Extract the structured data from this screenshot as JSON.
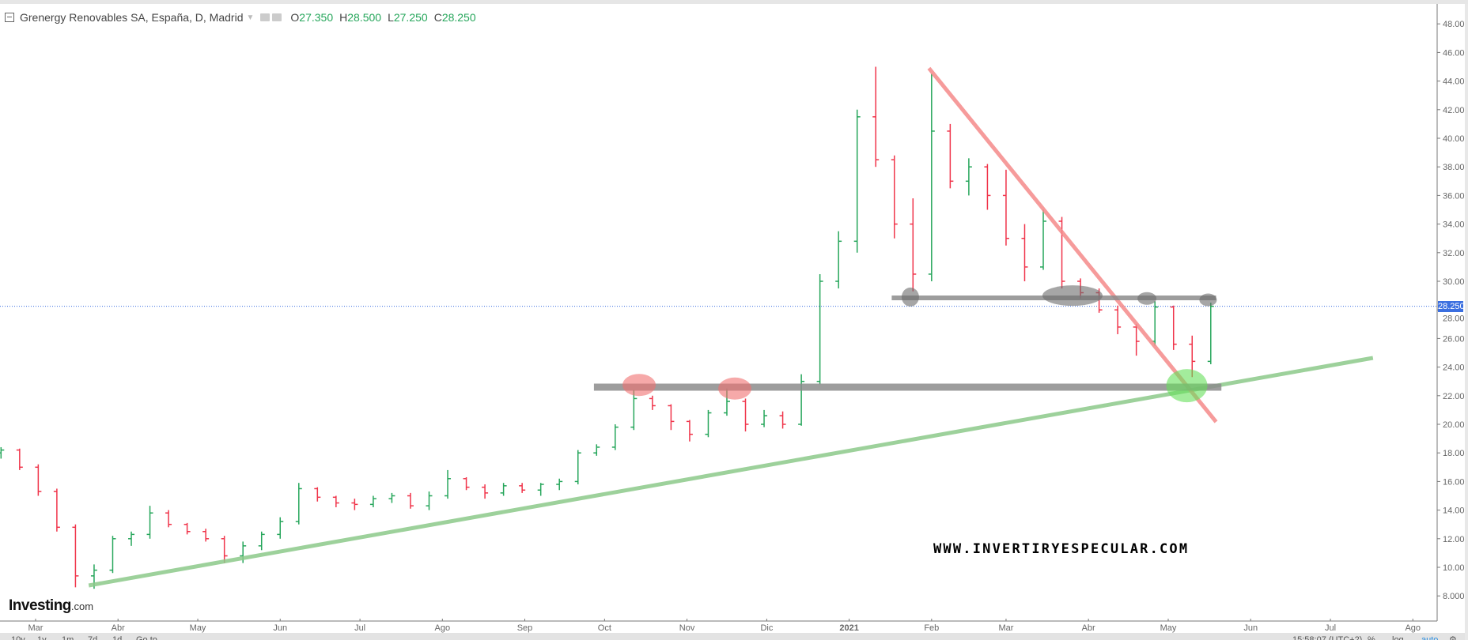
{
  "header": {
    "title": "Grenergy Renovables SA, España, D, Madrid",
    "open_label": "O",
    "open": "27.350",
    "high_label": "H",
    "high": "28.500",
    "low_label": "L",
    "low": "27.250",
    "close_label": "C",
    "close": "28.250"
  },
  "branding": {
    "logo_main": "Investing",
    "logo_suffix": ".com",
    "watermark": "WWW.INVERTIRYESPECULAR.COM"
  },
  "bottom_bar": {
    "ranges": [
      "10y",
      "1y",
      "1m",
      "7d",
      "1d",
      "Go to"
    ],
    "time": "15:58:07 (UTC+2)",
    "percent": "%",
    "log": "log",
    "auto": "auto"
  },
  "colors": {
    "up": "#26a65b",
    "down": "#f0344a",
    "last_price": "#3b6fe0",
    "support_trend": "#8cc98a",
    "resistance_trend": "#f48a8a",
    "levels": "#8c8c8c"
  },
  "chart_data": {
    "type": "ohlc",
    "title": "Grenergy Renovables SA, España, D, Madrid",
    "ylim": [
      6.5,
      49.5
    ],
    "yticks": [
      "8.000",
      "10.000",
      "12.000",
      "14.000",
      "16.000",
      "18.000",
      "20.000",
      "22.000",
      "24.000",
      "26.000",
      "28.000",
      "30.000",
      "32.000",
      "34.000",
      "36.000",
      "38.000",
      "40.000",
      "42.000",
      "44.000",
      "46.000",
      "48.000"
    ],
    "last_price": "28.250",
    "xticks": [
      {
        "date": "2020-03-01",
        "label": "Mar"
      },
      {
        "date": "2020-04-01",
        "label": "Abr"
      },
      {
        "date": "2020-05-01",
        "label": "May"
      },
      {
        "date": "2020-06-01",
        "label": "Jun"
      },
      {
        "date": "2020-07-01",
        "label": "Jul"
      },
      {
        "date": "2020-08-01",
        "label": "Ago"
      },
      {
        "date": "2020-09-01",
        "label": "Sep"
      },
      {
        "date": "2020-10-01",
        "label": "Oct"
      },
      {
        "date": "2020-11-01",
        "label": "Nov"
      },
      {
        "date": "2020-12-01",
        "label": "Dic"
      },
      {
        "date": "2021-01-01",
        "label": "2021"
      },
      {
        "date": "2021-02-01",
        "label": "Feb"
      },
      {
        "date": "2021-03-01",
        "label": "Mar"
      },
      {
        "date": "2021-04-01",
        "label": "Abr"
      },
      {
        "date": "2021-05-01",
        "label": "May"
      },
      {
        "date": "2021-06-01",
        "label": "Jun"
      },
      {
        "date": "2021-07-01",
        "label": "Jul"
      },
      {
        "date": "2021-08-01",
        "label": "Ago"
      }
    ],
    "bars": [
      [
        "2020-02-17",
        18.0,
        18.4,
        17.6,
        18.2
      ],
      [
        "2020-02-24",
        18.2,
        18.3,
        16.8,
        17.0
      ],
      [
        "2020-03-02",
        17.0,
        17.2,
        15.0,
        15.3
      ],
      [
        "2020-03-09",
        15.3,
        15.5,
        12.5,
        12.8
      ],
      [
        "2020-03-16",
        12.8,
        13.0,
        8.6,
        9.4
      ],
      [
        "2020-03-23",
        9.4,
        10.2,
        8.5,
        9.8
      ],
      [
        "2020-03-30",
        9.8,
        12.2,
        9.6,
        12.0
      ],
      [
        "2020-04-06",
        12.0,
        12.5,
        11.5,
        12.3
      ],
      [
        "2020-04-13",
        12.3,
        14.3,
        12.0,
        13.8
      ],
      [
        "2020-04-20",
        13.8,
        14.0,
        12.8,
        13.0
      ],
      [
        "2020-04-27",
        13.0,
        13.1,
        12.3,
        12.5
      ],
      [
        "2020-05-04",
        12.5,
        12.7,
        11.8,
        12.0
      ],
      [
        "2020-05-11",
        12.0,
        12.2,
        10.3,
        10.8
      ],
      [
        "2020-05-18",
        10.8,
        11.8,
        10.3,
        11.5
      ],
      [
        "2020-05-25",
        11.5,
        12.5,
        11.2,
        12.3
      ],
      [
        "2020-06-01",
        12.3,
        13.5,
        12.0,
        13.2
      ],
      [
        "2020-06-08",
        13.2,
        15.9,
        13.0,
        15.5
      ],
      [
        "2020-06-15",
        15.5,
        15.6,
        14.6,
        14.9
      ],
      [
        "2020-06-22",
        14.9,
        15.0,
        14.2,
        14.5
      ],
      [
        "2020-06-29",
        14.5,
        14.8,
        14.0,
        14.4
      ],
      [
        "2020-07-06",
        14.4,
        15.0,
        14.2,
        14.8
      ],
      [
        "2020-07-13",
        14.8,
        15.2,
        14.5,
        15.0
      ],
      [
        "2020-07-20",
        15.0,
        15.2,
        14.1,
        14.3
      ],
      [
        "2020-07-27",
        14.3,
        15.3,
        14.0,
        15.0
      ],
      [
        "2020-08-03",
        15.0,
        16.8,
        14.8,
        16.2
      ],
      [
        "2020-08-10",
        16.2,
        16.3,
        15.4,
        15.6
      ],
      [
        "2020-08-17",
        15.6,
        15.8,
        14.8,
        15.2
      ],
      [
        "2020-08-24",
        15.2,
        15.9,
        15.0,
        15.7
      ],
      [
        "2020-08-31",
        15.7,
        15.9,
        15.2,
        15.4
      ],
      [
        "2020-09-07",
        15.4,
        15.9,
        15.0,
        15.8
      ],
      [
        "2020-09-14",
        15.8,
        16.2,
        15.4,
        16.0
      ],
      [
        "2020-09-21",
        16.0,
        18.2,
        15.8,
        18.0
      ],
      [
        "2020-09-28",
        18.0,
        18.6,
        17.8,
        18.4
      ],
      [
        "2020-10-05",
        18.4,
        20.0,
        18.2,
        19.8
      ],
      [
        "2020-10-12",
        19.8,
        22.4,
        19.6,
        21.8
      ],
      [
        "2020-10-19",
        21.8,
        22.0,
        21.0,
        21.3
      ],
      [
        "2020-10-26",
        21.3,
        21.4,
        19.6,
        20.2
      ],
      [
        "2020-11-02",
        20.2,
        20.3,
        18.8,
        19.3
      ],
      [
        "2020-11-09",
        19.3,
        21.0,
        19.1,
        20.8
      ],
      [
        "2020-11-16",
        20.8,
        22.5,
        20.6,
        21.6
      ],
      [
        "2020-11-23",
        21.6,
        21.8,
        19.5,
        20.0
      ],
      [
        "2020-11-30",
        20.0,
        21.0,
        19.8,
        20.6
      ],
      [
        "2020-12-07",
        20.6,
        20.9,
        19.7,
        20.0
      ],
      [
        "2020-12-14",
        20.0,
        23.5,
        19.9,
        23.0
      ],
      [
        "2020-12-21",
        23.0,
        30.5,
        22.8,
        30.0
      ],
      [
        "2020-12-28",
        30.0,
        33.5,
        29.5,
        32.8
      ],
      [
        "2021-01-04",
        32.8,
        42.0,
        32.0,
        41.5
      ],
      [
        "2021-01-11",
        41.5,
        45.0,
        38.0,
        38.5
      ],
      [
        "2021-01-18",
        38.5,
        38.8,
        33.0,
        34.0
      ],
      [
        "2021-01-25",
        34.0,
        35.8,
        29.3,
        30.5
      ],
      [
        "2021-02-01",
        30.5,
        44.5,
        30.0,
        40.5
      ],
      [
        "2021-02-08",
        40.5,
        41.0,
        36.5,
        37.0
      ],
      [
        "2021-02-15",
        37.0,
        38.6,
        36.0,
        38.0
      ],
      [
        "2021-02-22",
        38.0,
        38.2,
        35.0,
        36.0
      ],
      [
        "2021-03-01",
        36.0,
        37.8,
        32.5,
        33.0
      ],
      [
        "2021-03-08",
        33.0,
        34.0,
        30.0,
        31.0
      ],
      [
        "2021-03-15",
        31.0,
        35.0,
        30.8,
        34.2
      ],
      [
        "2021-03-22",
        34.2,
        34.5,
        29.5,
        30.0
      ],
      [
        "2021-03-29",
        30.0,
        30.2,
        28.8,
        29.2
      ],
      [
        "2021-04-05",
        29.2,
        29.5,
        27.8,
        28.0
      ],
      [
        "2021-04-12",
        28.0,
        28.3,
        26.3,
        26.8
      ],
      [
        "2021-04-19",
        26.8,
        27.0,
        24.8,
        25.8
      ],
      [
        "2021-04-26",
        25.8,
        28.6,
        25.5,
        28.2
      ],
      [
        "2021-05-03",
        28.2,
        28.3,
        25.2,
        25.6
      ],
      [
        "2021-05-10",
        25.6,
        26.2,
        23.3,
        24.4
      ],
      [
        "2021-05-17",
        24.4,
        28.5,
        24.2,
        28.25
      ]
    ],
    "annotations": {
      "lines": [
        {
          "name": "support-trendline",
          "color": "#8cc98a",
          "from": [
            "2020-03-21",
            8.73
          ],
          "to": [
            "2021-07-17",
            24.64
          ]
        },
        {
          "name": "resistance-trendline",
          "color": "#f48a8a",
          "from": [
            "2021-01-31",
            44.9
          ],
          "to": [
            "2021-05-19",
            20.17
          ]
        },
        {
          "name": "lower-horizontal-level",
          "color": "#8c8c8c",
          "from": [
            "2020-09-27",
            22.6
          ],
          "to": [
            "2021-05-21",
            22.6
          ]
        },
        {
          "name": "upper-horizontal-level",
          "color": "#8c8c8c",
          "from": [
            "2021-01-17",
            28.84
          ],
          "to": [
            "2021-05-19",
            28.84
          ]
        }
      ],
      "ellipses": [
        {
          "name": "red-highlight",
          "color": "#f07070",
          "center": [
            "2020-10-14",
            22.75
          ]
        },
        {
          "name": "red-highlight",
          "color": "#f07070",
          "center": [
            "2020-11-19",
            22.5
          ]
        },
        {
          "name": "gray-highlight",
          "color": "#6a6a6a",
          "center": [
            "2021-01-24",
            28.9
          ]
        },
        {
          "name": "gray-highlight",
          "color": "#6a6a6a",
          "center": [
            "2021-03-26",
            29.0
          ]
        },
        {
          "name": "gray-highlight",
          "color": "#6a6a6a",
          "center": [
            "2021-04-23",
            28.8
          ]
        },
        {
          "name": "gray-highlight",
          "color": "#6a6a6a",
          "center": [
            "2021-05-16",
            28.7
          ]
        },
        {
          "name": "green-highlight",
          "color": "#66e05a",
          "center": [
            "2021-05-08",
            22.7
          ]
        }
      ]
    }
  }
}
